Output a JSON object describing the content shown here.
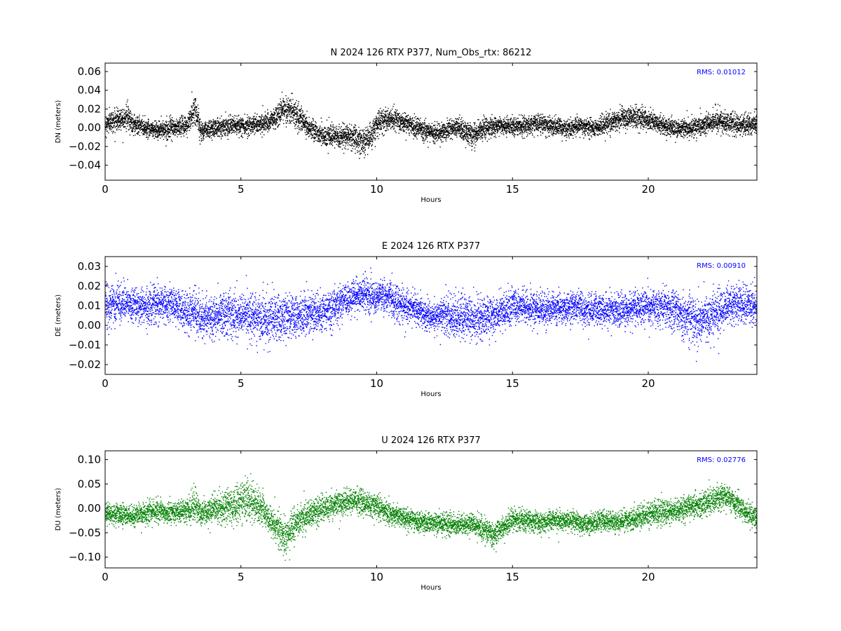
{
  "chart_data": [
    {
      "type": "scatter",
      "title": "N 2024 126 RTX  P377, Num_Obs_rtx: 86212",
      "xlabel": "Hours",
      "ylabel": "DN (meters)",
      "xlim": [
        0,
        24
      ],
      "ylim": [
        -0.056,
        0.069
      ],
      "x_ticks": [
        0,
        5,
        10,
        15,
        20
      ],
      "y_ticks": [
        -0.04,
        -0.02,
        0.0,
        0.02,
        0.04,
        0.06
      ],
      "y_tick_labels": [
        "−0.04",
        "−0.02",
        "0.00",
        "0.02",
        "0.04",
        "0.06"
      ],
      "color": "#000000",
      "rms_label": "RMS:  0.01012",
      "rms_color": "#0000ff",
      "grid": false,
      "series": [
        {
          "x": [
            0,
            0.5,
            0.8,
            1,
            1.5,
            2,
            2.5,
            3,
            3.3,
            3.5,
            4,
            4.5,
            5,
            5.5,
            6,
            6.3,
            6.6,
            7,
            7.5,
            8,
            8.5,
            9,
            9.5,
            9.8,
            10,
            10.5,
            11,
            11.5,
            12,
            12.5,
            13,
            13.5,
            14,
            14.5,
            15,
            15.5,
            16,
            16.5,
            17,
            17.5,
            18,
            18.5,
            19,
            19.5,
            20,
            20.5,
            21,
            21.5,
            22,
            22.5,
            23,
            23.5,
            24
          ],
          "values": [
            0.005,
            0.01,
            0.012,
            0.005,
            0.0,
            -0.002,
            0.0,
            0.003,
            0.02,
            -0.002,
            0.0,
            0.003,
            0.002,
            0.004,
            0.006,
            0.012,
            0.022,
            0.015,
            0.0,
            -0.008,
            -0.01,
            -0.008,
            -0.015,
            -0.008,
            0.005,
            0.01,
            0.005,
            0.0,
            -0.005,
            -0.003,
            0.0,
            -0.008,
            0.0,
            0.003,
            0.002,
            0.003,
            0.005,
            0.002,
            0.0,
            0.003,
            0.0,
            0.005,
            0.01,
            0.012,
            0.008,
            0.003,
            0.0,
            0.0,
            0.003,
            0.008,
            0.005,
            0.002,
            0.005
          ],
          "spread": [
            0.012,
            0.014,
            0.016,
            0.012,
            0.011,
            0.011,
            0.011,
            0.012,
            0.022,
            0.012,
            0.011,
            0.011,
            0.011,
            0.012,
            0.012,
            0.014,
            0.018,
            0.016,
            0.013,
            0.013,
            0.014,
            0.014,
            0.018,
            0.016,
            0.015,
            0.014,
            0.012,
            0.012,
            0.012,
            0.012,
            0.013,
            0.014,
            0.012,
            0.011,
            0.011,
            0.011,
            0.011,
            0.011,
            0.011,
            0.011,
            0.011,
            0.012,
            0.013,
            0.014,
            0.013,
            0.011,
            0.011,
            0.012,
            0.012,
            0.013,
            0.012,
            0.012,
            0.013
          ]
        }
      ]
    },
    {
      "type": "scatter",
      "title": "E 2024 126 RTX  P377",
      "xlabel": "Hours",
      "ylabel": "DE (meters)",
      "xlim": [
        0,
        24
      ],
      "ylim": [
        -0.025,
        0.035
      ],
      "x_ticks": [
        0,
        5,
        10,
        15,
        20
      ],
      "y_ticks": [
        -0.02,
        -0.01,
        0.0,
        0.01,
        0.02,
        0.03
      ],
      "y_tick_labels": [
        "−0.02",
        "−0.01",
        "0.00",
        "0.01",
        "0.02",
        "0.03"
      ],
      "color": "#0000ff",
      "rms_label": "RMS:  0.00910",
      "rms_color": "#0000ff",
      "grid": false,
      "series": [
        {
          "x": [
            0,
            0.5,
            1,
            1.5,
            2,
            2.5,
            3,
            3.5,
            4,
            4.5,
            5,
            5.5,
            6,
            6.5,
            7,
            7.5,
            8,
            8.5,
            9,
            9.5,
            10,
            10.5,
            11,
            11.5,
            12,
            12.5,
            13,
            13.5,
            14,
            14.5,
            15,
            15.5,
            16,
            16.5,
            17,
            17.5,
            18,
            18.5,
            19,
            19.5,
            20,
            20.5,
            21,
            21.5,
            22,
            22.5,
            23,
            23.5,
            24
          ],
          "values": [
            0.01,
            0.012,
            0.011,
            0.01,
            0.012,
            0.01,
            0.008,
            0.004,
            0.005,
            0.006,
            0.005,
            0.004,
            0.004,
            0.004,
            0.005,
            0.006,
            0.007,
            0.01,
            0.014,
            0.016,
            0.014,
            0.015,
            0.01,
            0.008,
            0.004,
            0.006,
            0.004,
            0.003,
            0.004,
            0.006,
            0.01,
            0.009,
            0.008,
            0.009,
            0.009,
            0.009,
            0.008,
            0.008,
            0.008,
            0.009,
            0.01,
            0.009,
            0.008,
            0.004,
            0.003,
            0.007,
            0.011,
            0.011,
            0.01
          ],
          "spread": [
            0.012,
            0.011,
            0.01,
            0.011,
            0.011,
            0.011,
            0.012,
            0.013,
            0.013,
            0.013,
            0.013,
            0.013,
            0.014,
            0.014,
            0.013,
            0.012,
            0.012,
            0.011,
            0.01,
            0.01,
            0.01,
            0.01,
            0.01,
            0.009,
            0.009,
            0.011,
            0.013,
            0.013,
            0.012,
            0.011,
            0.01,
            0.01,
            0.01,
            0.01,
            0.01,
            0.01,
            0.01,
            0.01,
            0.01,
            0.01,
            0.011,
            0.011,
            0.012,
            0.014,
            0.015,
            0.014,
            0.011,
            0.011,
            0.011
          ]
        }
      ]
    },
    {
      "type": "scatter",
      "title": "U 2024 126 RTX  P377",
      "xlabel": "Hours",
      "ylabel": "DU (meters)",
      "xlim": [
        0,
        24
      ],
      "ylim": [
        -0.122,
        0.118
      ],
      "x_ticks": [
        0,
        5,
        10,
        15,
        20
      ],
      "y_ticks": [
        -0.1,
        -0.05,
        0.0,
        0.05,
        0.1
      ],
      "y_tick_labels": [
        "−0.10",
        "−0.05",
        "0.00",
        "0.05",
        "0.10"
      ],
      "color": "#008000",
      "rms_label": "RMS:  0.02776",
      "rms_color": "#0000ff",
      "grid": false,
      "series": [
        {
          "x": [
            0,
            0.5,
            1,
            1.5,
            2,
            2.5,
            3,
            3.3,
            3.5,
            4,
            4.5,
            5,
            5.3,
            5.7,
            6,
            6.3,
            6.6,
            7,
            7.5,
            8,
            8.5,
            9,
            9.5,
            10,
            10.5,
            11,
            11.5,
            12,
            12.5,
            13,
            13.5,
            14,
            14.3,
            14.6,
            15,
            15.5,
            16,
            16.5,
            17,
            17.5,
            18,
            18.5,
            19,
            19.5,
            20,
            20.5,
            21,
            21.5,
            22,
            22.5,
            22.8,
            23,
            23.5,
            24
          ],
          "values": [
            -0.01,
            -0.01,
            -0.015,
            -0.01,
            -0.005,
            -0.01,
            -0.005,
            0.01,
            -0.01,
            0.0,
            0.005,
            0.01,
            0.02,
            0.0,
            -0.02,
            -0.04,
            -0.06,
            -0.03,
            -0.01,
            0.0,
            0.01,
            0.015,
            0.015,
            0.005,
            -0.01,
            -0.02,
            -0.025,
            -0.03,
            -0.03,
            -0.035,
            -0.03,
            -0.045,
            -0.055,
            -0.04,
            -0.02,
            -0.025,
            -0.03,
            -0.025,
            -0.025,
            -0.03,
            -0.03,
            -0.025,
            -0.025,
            -0.02,
            -0.01,
            -0.005,
            -0.005,
            0.005,
            0.01,
            0.02,
            0.03,
            0.02,
            -0.005,
            -0.02
          ],
          "spread": [
            0.025,
            0.025,
            0.025,
            0.025,
            0.025,
            0.025,
            0.025,
            0.04,
            0.03,
            0.03,
            0.04,
            0.05,
            0.055,
            0.04,
            0.035,
            0.04,
            0.05,
            0.04,
            0.03,
            0.03,
            0.03,
            0.03,
            0.03,
            0.03,
            0.025,
            0.025,
            0.025,
            0.025,
            0.025,
            0.025,
            0.025,
            0.028,
            0.03,
            0.028,
            0.025,
            0.025,
            0.025,
            0.025,
            0.025,
            0.025,
            0.025,
            0.025,
            0.025,
            0.025,
            0.03,
            0.03,
            0.028,
            0.028,
            0.028,
            0.03,
            0.03,
            0.03,
            0.025,
            0.025
          ]
        }
      ]
    }
  ]
}
